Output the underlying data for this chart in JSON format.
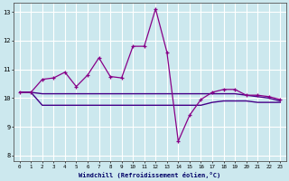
{
  "xlabel": "Windchill (Refroidissement éolien,°C)",
  "background_color": "#cce8ee",
  "grid_color": "#ffffff",
  "line_color_main": "#880088",
  "line_color_flat1": "#440088",
  "line_color_flat2": "#880088",
  "xlim_min": -0.5,
  "xlim_max": 23.5,
  "ylim_min": 7.8,
  "ylim_max": 13.3,
  "yticks": [
    8,
    9,
    10,
    11,
    12,
    13
  ],
  "xticks": [
    0,
    1,
    2,
    3,
    4,
    5,
    6,
    7,
    8,
    9,
    10,
    11,
    12,
    13,
    14,
    15,
    16,
    17,
    18,
    19,
    20,
    21,
    22,
    23
  ],
  "x": [
    0,
    1,
    2,
    3,
    4,
    5,
    6,
    7,
    8,
    9,
    10,
    11,
    12,
    13,
    14,
    15,
    16,
    17,
    18,
    19,
    20,
    21,
    22,
    23
  ],
  "y_main": [
    10.2,
    10.2,
    10.65,
    10.7,
    10.9,
    10.4,
    10.8,
    11.4,
    10.75,
    10.7,
    11.8,
    11.8,
    13.1,
    11.6,
    8.5,
    9.4,
    9.95,
    10.2,
    10.3,
    10.3,
    10.1,
    10.1,
    10.05,
    9.95
  ],
  "y_upper_flat": [
    10.2,
    10.2,
    10.15,
    10.15,
    10.15,
    10.15,
    10.15,
    10.15,
    10.15,
    10.15,
    10.15,
    10.15,
    10.15,
    10.15,
    10.15,
    10.15,
    10.15,
    10.15,
    10.15,
    10.15,
    10.1,
    10.05,
    10.0,
    9.9
  ],
  "y_lower_flat": [
    10.2,
    10.2,
    9.75,
    9.75,
    9.75,
    9.75,
    9.75,
    9.75,
    9.75,
    9.75,
    9.75,
    9.75,
    9.75,
    9.75,
    9.75,
    9.75,
    9.75,
    9.85,
    9.9,
    9.9,
    9.9,
    9.85,
    9.85,
    9.85
  ]
}
